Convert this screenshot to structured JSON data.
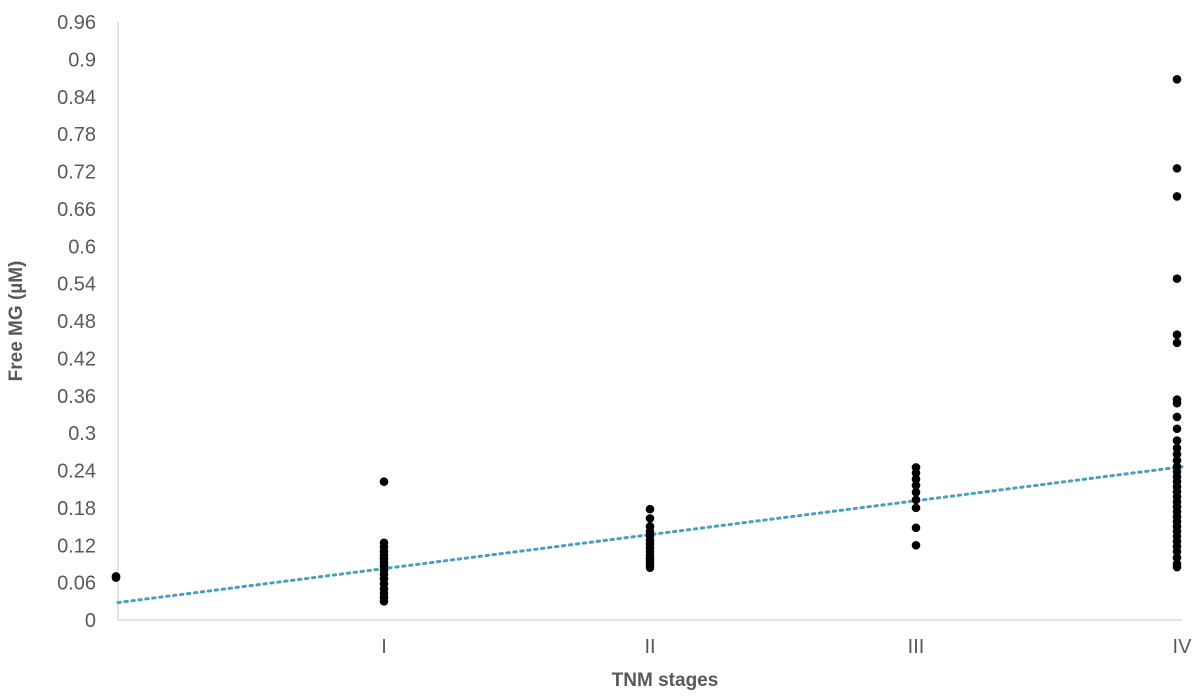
{
  "chart_data": {
    "type": "scatter",
    "title": "",
    "xlabel": "TNM stages",
    "ylabel": "Free MG (µM)",
    "categories": [
      "",
      "I",
      "II",
      "III",
      "IV"
    ],
    "ylim": [
      0,
      0.96
    ],
    "yticks": [
      "0",
      "0.06",
      "0.12",
      "0.18",
      "0.24",
      "0.3",
      "0.36",
      "0.42",
      "0.48",
      "0.54",
      "0.6",
      "0.66",
      "0.72",
      "0.78",
      "0.84",
      "0.9",
      "0.96"
    ],
    "grid": false,
    "legend": "none",
    "colors": {
      "points": "#000000",
      "trendline": "#4a9fc0",
      "axis": "#d9d9d9",
      "text": "#595959"
    },
    "series": [
      {
        "points": [
          {
            "x": 0,
            "y": 0.068
          },
          {
            "x": 0,
            "y": 0.07
          },
          {
            "x": 1,
            "y": 0.222
          },
          {
            "x": 1,
            "y": 0.124
          },
          {
            "x": 1,
            "y": 0.117
          },
          {
            "x": 1,
            "y": 0.11
          },
          {
            "x": 1,
            "y": 0.104
          },
          {
            "x": 1,
            "y": 0.098
          },
          {
            "x": 1,
            "y": 0.092
          },
          {
            "x": 1,
            "y": 0.086
          },
          {
            "x": 1,
            "y": 0.08
          },
          {
            "x": 1,
            "y": 0.073
          },
          {
            "x": 1,
            "y": 0.066
          },
          {
            "x": 1,
            "y": 0.058
          },
          {
            "x": 1,
            "y": 0.05
          },
          {
            "x": 1,
            "y": 0.043
          },
          {
            "x": 1,
            "y": 0.036
          },
          {
            "x": 1,
            "y": 0.03
          },
          {
            "x": 2,
            "y": 0.178
          },
          {
            "x": 2,
            "y": 0.163
          },
          {
            "x": 2,
            "y": 0.15
          },
          {
            "x": 2,
            "y": 0.142
          },
          {
            "x": 2,
            "y": 0.135
          },
          {
            "x": 2,
            "y": 0.128
          },
          {
            "x": 2,
            "y": 0.122
          },
          {
            "x": 2,
            "y": 0.116
          },
          {
            "x": 2,
            "y": 0.11
          },
          {
            "x": 2,
            "y": 0.104
          },
          {
            "x": 2,
            "y": 0.098
          },
          {
            "x": 2,
            "y": 0.093
          },
          {
            "x": 2,
            "y": 0.088
          },
          {
            "x": 2,
            "y": 0.084
          },
          {
            "x": 3,
            "y": 0.245
          },
          {
            "x": 3,
            "y": 0.236
          },
          {
            "x": 3,
            "y": 0.226
          },
          {
            "x": 3,
            "y": 0.216
          },
          {
            "x": 3,
            "y": 0.205
          },
          {
            "x": 3,
            "y": 0.193
          },
          {
            "x": 3,
            "y": 0.18
          },
          {
            "x": 3,
            "y": 0.148
          },
          {
            "x": 3,
            "y": 0.12
          },
          {
            "x": 4,
            "y": 0.868
          },
          {
            "x": 4,
            "y": 0.725
          },
          {
            "x": 4,
            "y": 0.68
          },
          {
            "x": 4,
            "y": 0.548
          },
          {
            "x": 4,
            "y": 0.458
          },
          {
            "x": 4,
            "y": 0.445
          },
          {
            "x": 4,
            "y": 0.354
          },
          {
            "x": 4,
            "y": 0.348
          },
          {
            "x": 4,
            "y": 0.326
          },
          {
            "x": 4,
            "y": 0.307
          },
          {
            "x": 4,
            "y": 0.288
          },
          {
            "x": 4,
            "y": 0.276
          },
          {
            "x": 4,
            "y": 0.266
          },
          {
            "x": 4,
            "y": 0.256
          },
          {
            "x": 4,
            "y": 0.246
          },
          {
            "x": 4,
            "y": 0.238
          },
          {
            "x": 4,
            "y": 0.23
          },
          {
            "x": 4,
            "y": 0.222
          },
          {
            "x": 4,
            "y": 0.214
          },
          {
            "x": 4,
            "y": 0.206
          },
          {
            "x": 4,
            "y": 0.198
          },
          {
            "x": 4,
            "y": 0.19
          },
          {
            "x": 4,
            "y": 0.182
          },
          {
            "x": 4,
            "y": 0.174
          },
          {
            "x": 4,
            "y": 0.166
          },
          {
            "x": 4,
            "y": 0.158
          },
          {
            "x": 4,
            "y": 0.15
          },
          {
            "x": 4,
            "y": 0.142
          },
          {
            "x": 4,
            "y": 0.134
          },
          {
            "x": 4,
            "y": 0.126
          },
          {
            "x": 4,
            "y": 0.118
          },
          {
            "x": 4,
            "y": 0.11
          },
          {
            "x": 4,
            "y": 0.1
          },
          {
            "x": 4,
            "y": 0.09
          },
          {
            "x": 4,
            "y": 0.085
          }
        ]
      }
    ],
    "trendline": {
      "type": "linear",
      "style": "dotted",
      "start": {
        "x": 0,
        "y": 0.028
      },
      "end": {
        "x": 4,
        "y": 0.246
      }
    }
  }
}
